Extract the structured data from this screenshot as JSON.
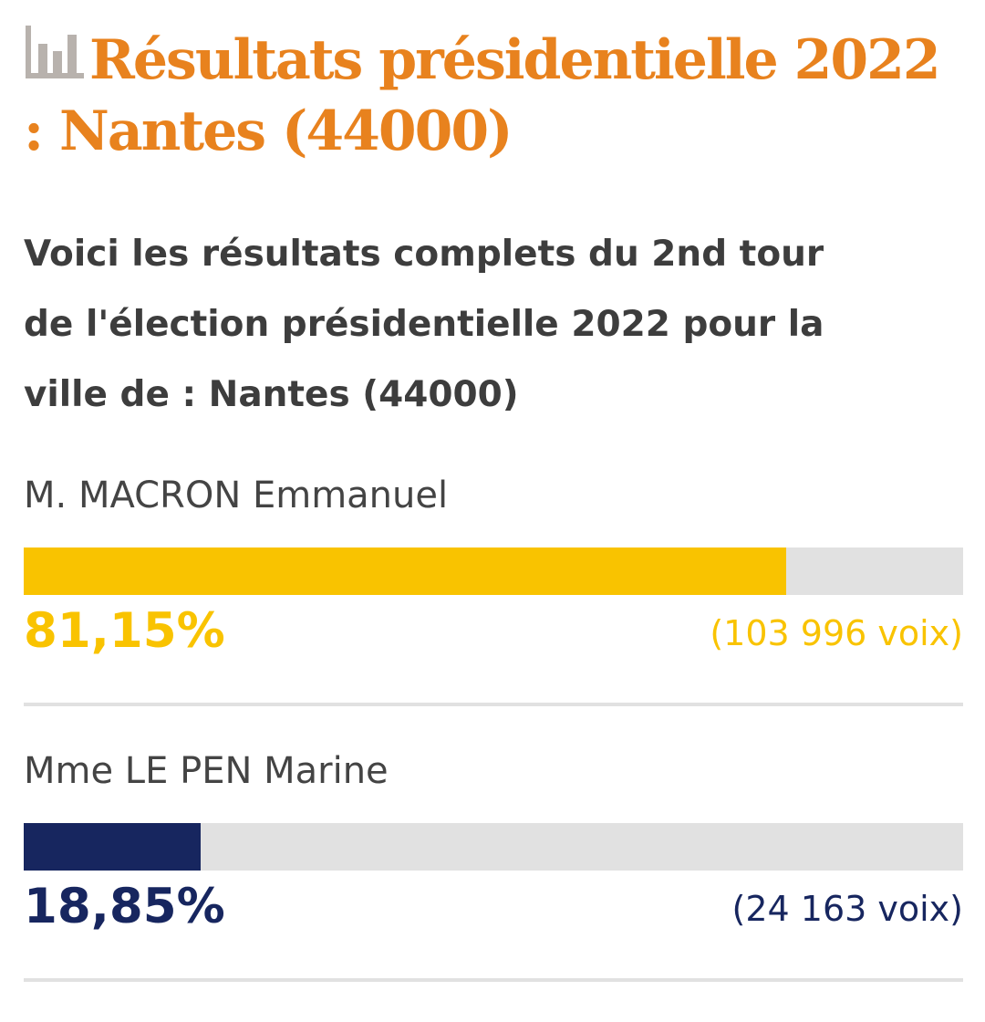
{
  "header": {
    "icon": "bar-chart-icon",
    "title": "Résultats présidentielle 2022 : Nantes (44000)",
    "title_color": "#e8821e"
  },
  "intro": {
    "lines": [
      "Voici les résultats complets du 2nd tour",
      "de l'élection présidentielle 2022 pour la",
      "ville de : Nantes (44000)"
    ]
  },
  "chart_data": {
    "type": "bar",
    "orientation": "horizontal",
    "xlim": [
      0,
      100
    ],
    "categories": [
      "M. MACRON Emmanuel",
      "Mme LE PEN Marine"
    ],
    "values": [
      81.15,
      18.85
    ],
    "series": [
      {
        "name": "M. MACRON Emmanuel",
        "value": 81.15,
        "percent_label": "81,15%",
        "votes_label": "(103 996 voix)",
        "color": "#f9c300"
      },
      {
        "name": "Mme LE PEN Marine",
        "value": 18.85,
        "percent_label": "18,85%",
        "votes_label": "(24 163 voix)",
        "color": "#17265f"
      }
    ],
    "track_color": "#e1e1e1"
  }
}
